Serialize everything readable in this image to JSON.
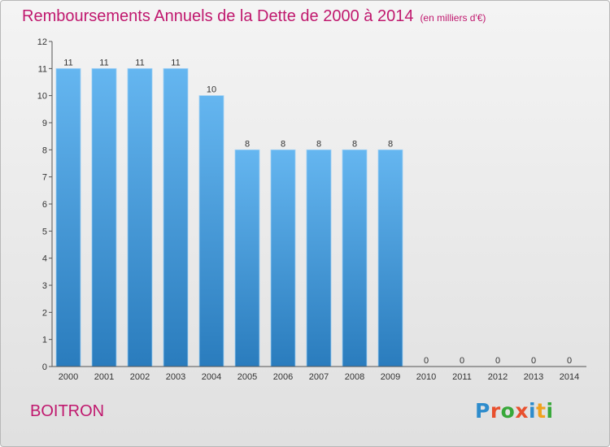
{
  "title": "Remboursements Annuels de la Dette de 2000 à 2014",
  "unit": "(en milliers d'€)",
  "commune": "BOITRON",
  "logo": {
    "text": "Proxiti",
    "letter_colors": [
      "#2e8ccc",
      "#e8502e",
      "#38a83a",
      "#e8502e",
      "#2e8ccc",
      "#f0a21e",
      "#38a83a"
    ]
  },
  "colors": {
    "title": "#c0186e",
    "bar_light": "#65b6f0",
    "bar_dark": "#2a7cbd"
  },
  "chart_data": {
    "type": "bar",
    "categories": [
      "2000",
      "2001",
      "2002",
      "2003",
      "2004",
      "2005",
      "2006",
      "2007",
      "2008",
      "2009",
      "2010",
      "2011",
      "2012",
      "2013",
      "2014"
    ],
    "values": [
      11,
      11,
      11,
      11,
      10,
      8,
      8,
      8,
      8,
      8,
      0,
      0,
      0,
      0,
      0
    ],
    "data_labels": [
      "11",
      "11",
      "11",
      "11",
      "10",
      "8",
      "8",
      "8",
      "8",
      "8",
      "0",
      "0",
      "0",
      "0",
      "0"
    ],
    "title": "Remboursements Annuels de la Dette de 2000 à 2014",
    "xlabel": "",
    "ylabel": "",
    "ylim": [
      0,
      12
    ],
    "yticks": [
      0,
      1,
      2,
      3,
      4,
      5,
      6,
      7,
      8,
      9,
      10,
      11,
      12
    ],
    "grid": false
  }
}
